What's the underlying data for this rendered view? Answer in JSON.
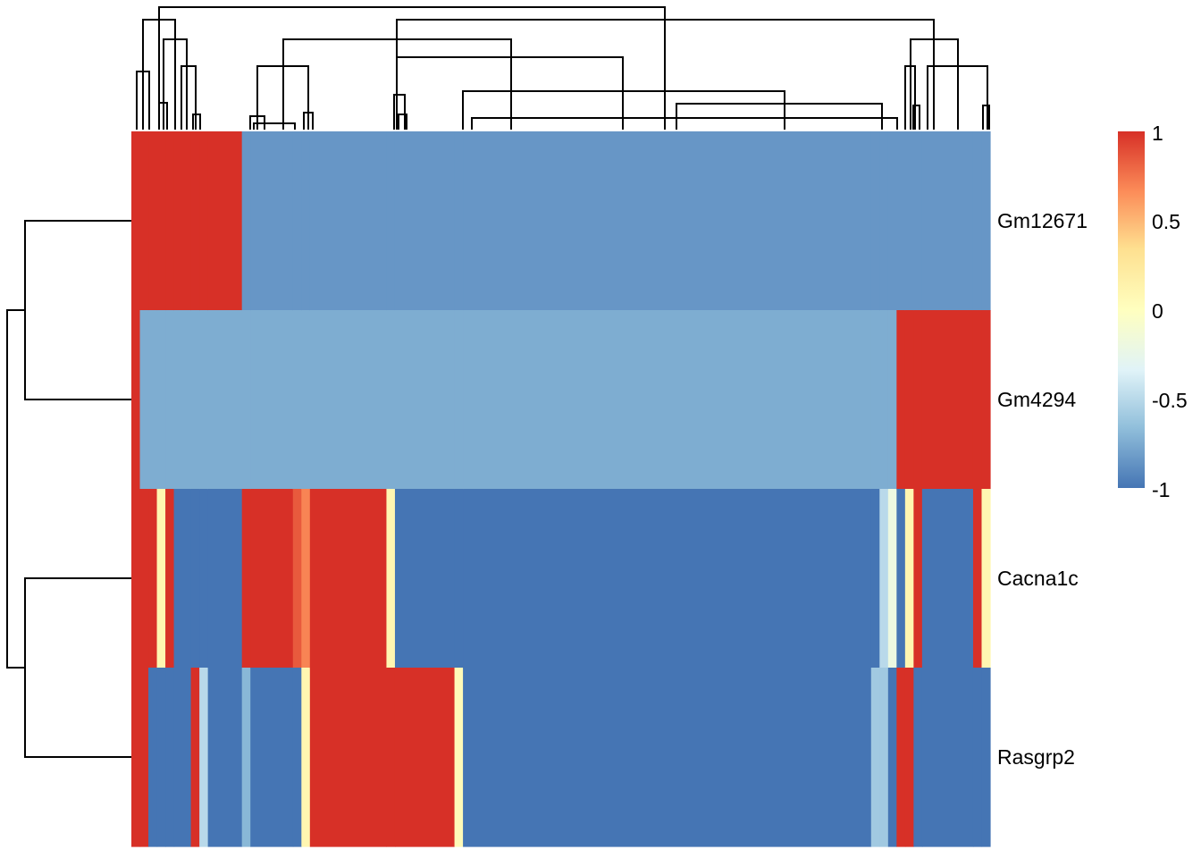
{
  "chart_data": {
    "type": "heatmap",
    "title": "",
    "xlabel": "",
    "ylabel": "",
    "rows": [
      "Gm12671",
      "Gm4294",
      "Cacna1c",
      "Rasgrp2"
    ],
    "row_dendrogram": "rows clustered as (Gm12671, Gm4294) and (Cacna1c, Rasgrp2)",
    "column_dendrogram": true,
    "value_range": [
      -1,
      1
    ],
    "legend": {
      "position": "right",
      "ticks": [
        "1",
        "0.5",
        "0",
        "-0.5",
        "-1"
      ],
      "colors": [
        "#d73027",
        "#fc8d59",
        "#fee090",
        "#ffffbf",
        "#e0f3f8",
        "#91bfdb",
        "#4575b4"
      ]
    },
    "column_segments": [
      {
        "cols": [
          0,
          1
        ],
        "values": [
          1,
          1,
          1,
          1
        ]
      },
      {
        "cols": [
          1,
          2
        ],
        "values": [
          1,
          -0.75,
          1,
          1
        ]
      },
      {
        "cols": [
          2,
          3
        ],
        "values": [
          1,
          -0.75,
          1,
          -1
        ]
      },
      {
        "cols": [
          3,
          4
        ],
        "values": [
          1,
          -0.75,
          0.1,
          -1
        ]
      },
      {
        "cols": [
          4,
          5
        ],
        "values": [
          1,
          -0.75,
          1,
          -1
        ]
      },
      {
        "cols": [
          5,
          7
        ],
        "values": [
          1,
          -0.75,
          -1,
          -1
        ]
      },
      {
        "cols": [
          7,
          8
        ],
        "values": [
          1,
          -0.75,
          -1,
          1
        ]
      },
      {
        "cols": [
          8,
          9
        ],
        "values": [
          1,
          -0.75,
          -1,
          -0.5
        ]
      },
      {
        "cols": [
          9,
          13
        ],
        "values": [
          1,
          -0.75,
          -1,
          -1
        ]
      },
      {
        "cols": [
          13,
          14
        ],
        "values": [
          -0.85,
          -0.75,
          1,
          -0.7
        ]
      },
      {
        "cols": [
          14,
          19
        ],
        "values": [
          -0.85,
          -0.75,
          1,
          -1
        ]
      },
      {
        "cols": [
          19,
          20
        ],
        "values": [
          -0.85,
          -0.75,
          0.85,
          -1
        ]
      },
      {
        "cols": [
          20,
          21
        ],
        "values": [
          -0.85,
          -0.75,
          0.7,
          0.1
        ]
      },
      {
        "cols": [
          21,
          30
        ],
        "values": [
          -0.85,
          -0.75,
          1,
          1
        ]
      },
      {
        "cols": [
          30,
          31
        ],
        "values": [
          -0.85,
          -0.75,
          0.1,
          1
        ]
      },
      {
        "cols": [
          31,
          38
        ],
        "values": [
          -0.85,
          -0.75,
          -1,
          1
        ]
      },
      {
        "cols": [
          38,
          39
        ],
        "values": [
          -0.85,
          -0.75,
          -1,
          0.05
        ]
      },
      {
        "cols": [
          39,
          87
        ],
        "values": [
          -0.85,
          -0.75,
          -1,
          -1
        ]
      },
      {
        "cols": [
          87,
          88
        ],
        "values": [
          -0.85,
          -0.75,
          -1,
          -0.6
        ]
      },
      {
        "cols": [
          88,
          89
        ],
        "values": [
          -0.85,
          -0.75,
          -0.5,
          -0.6
        ]
      },
      {
        "cols": [
          89,
          90
        ],
        "values": [
          -0.85,
          -0.75,
          -0.2,
          -1
        ]
      },
      {
        "cols": [
          90,
          91
        ],
        "values": [
          -0.85,
          1,
          -1,
          1
        ]
      },
      {
        "cols": [
          91,
          92
        ],
        "values": [
          -0.85,
          1,
          0.1,
          1
        ]
      },
      {
        "cols": [
          92,
          93
        ],
        "values": [
          -0.85,
          1,
          1,
          -1
        ]
      },
      {
        "cols": [
          93,
          99
        ],
        "values": [
          -0.85,
          1,
          -1,
          -1
        ]
      },
      {
        "cols": [
          99,
          100
        ],
        "values": [
          -0.85,
          1,
          1,
          -1
        ]
      },
      {
        "cols": [
          100,
          101
        ],
        "values": [
          -0.85,
          1,
          0.1,
          -1
        ]
      }
    ]
  }
}
